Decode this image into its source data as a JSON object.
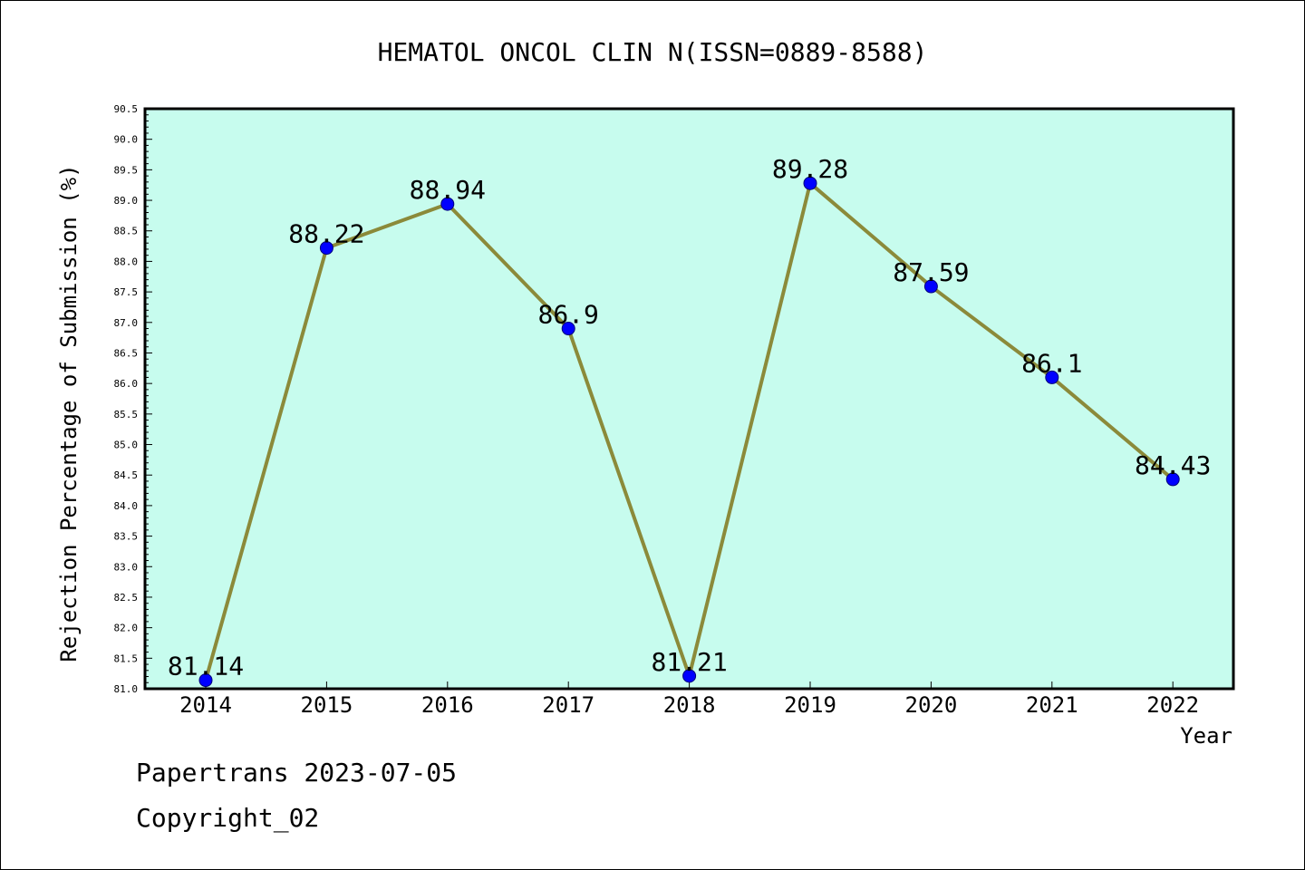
{
  "chart_data": {
    "type": "line",
    "title": "HEMATOL ONCOL CLIN N(ISSN=0889-8588)",
    "xlabel": "Year",
    "ylabel": "Rejection Percentage of Submission (%)",
    "categories": [
      "2014",
      "2015",
      "2016",
      "2017",
      "2018",
      "2019",
      "2020",
      "2021",
      "2022"
    ],
    "series": [
      {
        "values": [
          81.14,
          88.22,
          88.94,
          86.9,
          81.21,
          89.28,
          87.59,
          86.1,
          84.43
        ],
        "labels": [
          "81.14",
          "88.22",
          "88.94",
          "86.9",
          "81.21",
          "89.28",
          "87.59",
          "86.1",
          "84.43"
        ]
      }
    ],
    "ylim": [
      81.0,
      90.5
    ],
    "yticks": [
      "81.0",
      "81.5",
      "82.0",
      "82.5",
      "83.0",
      "83.5",
      "84.0",
      "84.5",
      "85.0",
      "85.5",
      "86.0",
      "86.5",
      "87.0",
      "87.5",
      "88.0",
      "88.5",
      "89.0",
      "89.5",
      "90.0",
      "90.5"
    ],
    "grid": false,
    "legend": "none",
    "colors": {
      "plot_background": "#c7fcee",
      "line": "#8b8a3a",
      "marker": "#0000ff",
      "axis": "#000000"
    }
  },
  "footer": {
    "line1": "Papertrans 2023-07-05",
    "line2": "Copyright_02"
  }
}
